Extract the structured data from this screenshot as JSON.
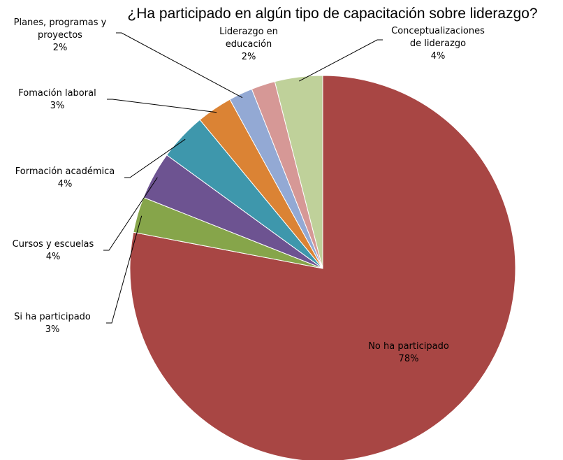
{
  "chart_data": {
    "type": "pie",
    "title": "¿Ha participado en algún tipo de capacitación sobre liderazgo?",
    "slices": [
      {
        "label": [
          "No ha participado"
        ],
        "pct_label": "78%",
        "value": 78,
        "color": "#A84644"
      },
      {
        "label": [
          "Si ha participado"
        ],
        "pct_label": "3%",
        "value": 3,
        "color": "#86A54A"
      },
      {
        "label": [
          "Cursos y escuelas"
        ],
        "pct_label": "4%",
        "value": 4,
        "color": "#6D5391"
      },
      {
        "label": [
          "Formación académica"
        ],
        "pct_label": "4%",
        "value": 4,
        "color": "#3E97AC"
      },
      {
        "label": [
          "Fomación laboral"
        ],
        "pct_label": "3%",
        "value": 3,
        "color": "#DB8334"
      },
      {
        "label": [
          "Planes, programas y",
          "proyectos"
        ],
        "pct_label": "2%",
        "value": 2,
        "color": "#93A9D4"
      },
      {
        "label": [
          "Liderazgo en",
          "educación"
        ],
        "pct_label": "2%",
        "value": 2,
        "color": "#D69896"
      },
      {
        "label": [
          "Conceptualizaciones",
          "de liderazgo"
        ],
        "pct_label": "4%",
        "value": 4,
        "color": "#BFD19A"
      }
    ],
    "start_angle_deg": 0,
    "direction": "clockwise",
    "legend": "none"
  }
}
